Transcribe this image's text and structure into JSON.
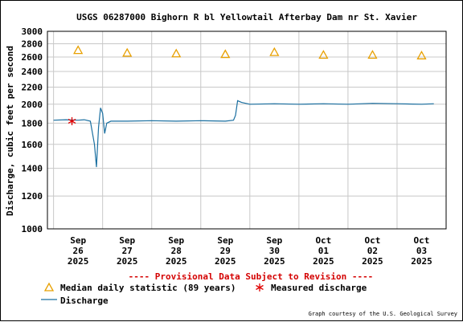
{
  "chart_data": {
    "type": "line",
    "title": "USGS 06287000 Bighorn R bl Yellowtail Afterbay Dam nr St. Xavier",
    "ylabel": "Discharge, cubic feet per second",
    "y_scale": "log",
    "ylim": [
      1000,
      3000
    ],
    "y_ticks": [
      1000,
      1200,
      1400,
      1600,
      1800,
      2000,
      2200,
      2400,
      2600,
      2800,
      3000
    ],
    "xlim": [
      "2025-09-25T21:00",
      "2025-10-04T00:00"
    ],
    "x_ticks": [
      {
        "t": "2025-09-26T12:00",
        "lines": [
          "Sep",
          "26",
          "2025"
        ]
      },
      {
        "t": "2025-09-27T12:00",
        "lines": [
          "Sep",
          "27",
          "2025"
        ]
      },
      {
        "t": "2025-09-28T12:00",
        "lines": [
          "Sep",
          "28",
          "2025"
        ]
      },
      {
        "t": "2025-09-29T12:00",
        "lines": [
          "Sep",
          "29",
          "2025"
        ]
      },
      {
        "t": "2025-09-30T12:00",
        "lines": [
          "Sep",
          "30",
          "2025"
        ]
      },
      {
        "t": "2025-10-01T12:00",
        "lines": [
          "Oct",
          "01",
          "2025"
        ]
      },
      {
        "t": "2025-10-02T12:00",
        "lines": [
          "Oct",
          "02",
          "2025"
        ]
      },
      {
        "t": "2025-10-03T12:00",
        "lines": [
          "Oct",
          "03",
          "2025"
        ]
      }
    ],
    "grid": true,
    "legend_position": "bottom",
    "series": [
      {
        "name": "Discharge",
        "kind": "line",
        "color": "#1a6fa0",
        "points": [
          {
            "t": "2025-09-26T00:00",
            "y": 1830
          },
          {
            "t": "2025-09-26T06:00",
            "y": 1835
          },
          {
            "t": "2025-09-26T12:00",
            "y": 1830
          },
          {
            "t": "2025-09-26T15:00",
            "y": 1835
          },
          {
            "t": "2025-09-26T18:00",
            "y": 1820
          },
          {
            "t": "2025-09-26T20:00",
            "y": 1600
          },
          {
            "t": "2025-09-26T21:00",
            "y": 1410
          },
          {
            "t": "2025-09-26T22:00",
            "y": 1760
          },
          {
            "t": "2025-09-26T23:00",
            "y": 1960
          },
          {
            "t": "2025-09-27T00:00",
            "y": 1900
          },
          {
            "t": "2025-09-27T01:00",
            "y": 1700
          },
          {
            "t": "2025-09-27T02:00",
            "y": 1800
          },
          {
            "t": "2025-09-27T04:00",
            "y": 1820
          },
          {
            "t": "2025-09-27T12:00",
            "y": 1820
          },
          {
            "t": "2025-09-28T00:00",
            "y": 1825
          },
          {
            "t": "2025-09-28T12:00",
            "y": 1820
          },
          {
            "t": "2025-09-29T00:00",
            "y": 1825
          },
          {
            "t": "2025-09-29T12:00",
            "y": 1820
          },
          {
            "t": "2025-09-29T16:00",
            "y": 1830
          },
          {
            "t": "2025-09-29T17:00",
            "y": 1880
          },
          {
            "t": "2025-09-29T18:00",
            "y": 2040
          },
          {
            "t": "2025-09-29T20:00",
            "y": 2020
          },
          {
            "t": "2025-09-30T00:00",
            "y": 2000
          },
          {
            "t": "2025-09-30T12:00",
            "y": 2005
          },
          {
            "t": "2025-10-01T00:00",
            "y": 2000
          },
          {
            "t": "2025-10-01T12:00",
            "y": 2005
          },
          {
            "t": "2025-10-02T00:00",
            "y": 2000
          },
          {
            "t": "2025-10-02T12:00",
            "y": 2010
          },
          {
            "t": "2025-10-03T00:00",
            "y": 2005
          },
          {
            "t": "2025-10-03T12:00",
            "y": 2000
          },
          {
            "t": "2025-10-03T18:00",
            "y": 2005
          }
        ]
      },
      {
        "name": "Median daily statistic (89 years)",
        "kind": "marker",
        "marker": "triangle",
        "color": "#e8a000",
        "points": [
          {
            "t": "2025-09-26T12:00",
            "y": 2700
          },
          {
            "t": "2025-09-27T12:00",
            "y": 2660
          },
          {
            "t": "2025-09-28T12:00",
            "y": 2650
          },
          {
            "t": "2025-09-29T12:00",
            "y": 2640
          },
          {
            "t": "2025-09-30T12:00",
            "y": 2670
          },
          {
            "t": "2025-10-01T12:00",
            "y": 2630
          },
          {
            "t": "2025-10-02T12:00",
            "y": 2630
          },
          {
            "t": "2025-10-03T12:00",
            "y": 2620
          }
        ]
      },
      {
        "name": "Measured discharge",
        "kind": "marker",
        "marker": "star",
        "color": "#e00000",
        "points": [
          {
            "t": "2025-09-26T09:00",
            "y": 1820
          }
        ]
      }
    ],
    "provisional_notice": "---- Provisional Data Subject to Revision ----",
    "courtesy": "Graph courtesy of the U.S. Geological Survey"
  }
}
